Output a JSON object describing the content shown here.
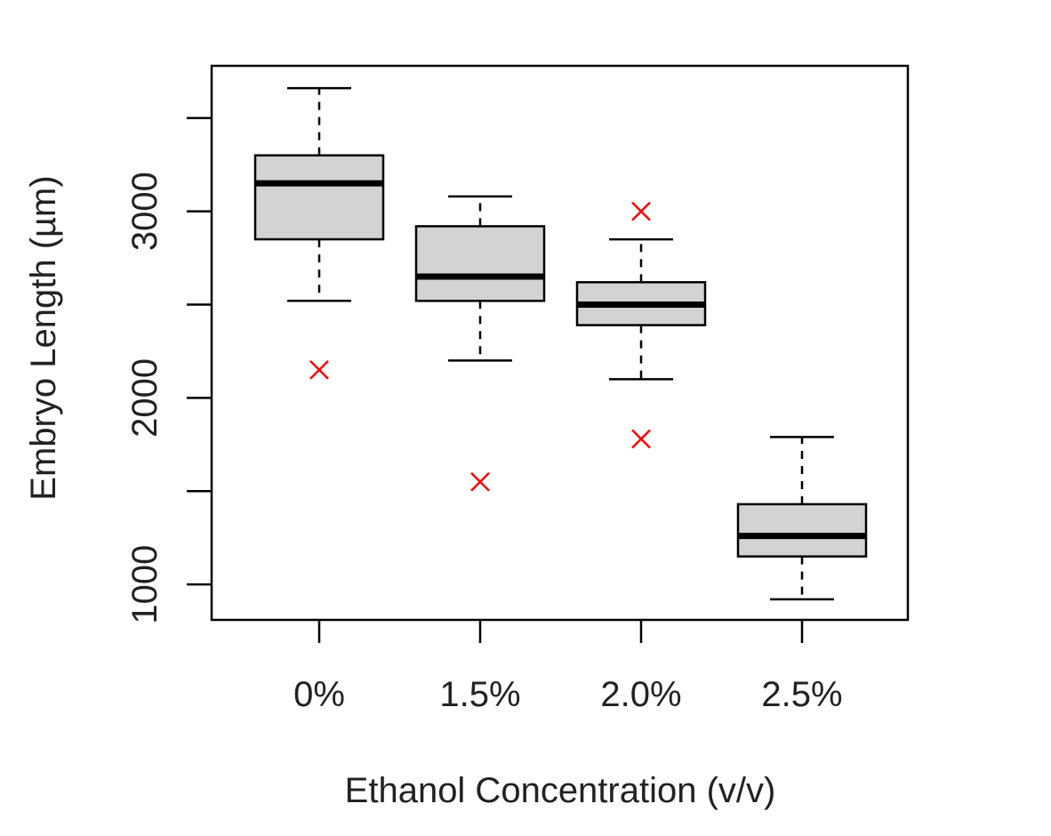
{
  "chart_data": {
    "type": "box",
    "title": "",
    "xlabel": "Ethanol Concentration (v/v)",
    "ylabel": "Embryo Length (µm)",
    "ylim": [
      810,
      3780
    ],
    "yticks": [
      1000,
      1500,
      2000,
      2500,
      3000,
      3500
    ],
    "ytick_labels": [
      "1000",
      "",
      "2000",
      "",
      "3000",
      ""
    ],
    "grid": false,
    "box_fill": "#d3d3d3",
    "outlier_color": "#ff0000",
    "outlier_marker": "x",
    "categories": [
      "0%",
      "1.5%",
      "2.0%",
      "2.5%"
    ],
    "boxes": [
      {
        "category": "0%",
        "whisker_low": 2520,
        "q1": 2850,
        "median": 3150,
        "q3": 3300,
        "whisker_high": 3660,
        "outliers": [
          2150
        ]
      },
      {
        "category": "1.5%",
        "whisker_low": 2200,
        "q1": 2520,
        "median": 2650,
        "q3": 2920,
        "whisker_high": 3080,
        "outliers": [
          1550
        ]
      },
      {
        "category": "2.0%",
        "whisker_low": 2100,
        "q1": 2390,
        "median": 2500,
        "q3": 2620,
        "whisker_high": 2850,
        "outliers": [
          3000,
          1780
        ]
      },
      {
        "category": "2.5%",
        "whisker_low": 920,
        "q1": 1150,
        "median": 1260,
        "q3": 1430,
        "whisker_high": 1790,
        "outliers": []
      }
    ]
  }
}
